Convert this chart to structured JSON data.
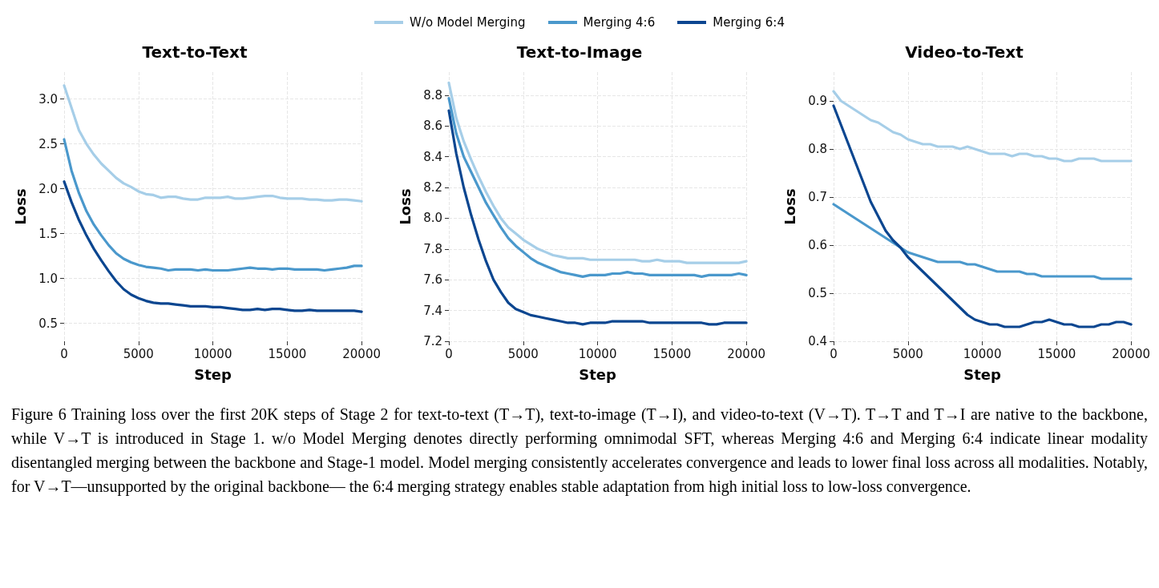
{
  "chart_data": [
    {
      "type": "line",
      "title": "Text-to-Text",
      "xlabel": "Step",
      "ylabel": "Loss",
      "legend": "top",
      "grid": true,
      "marker": "none",
      "line_style": "solid",
      "x": [
        0,
        500,
        1000,
        1500,
        2000,
        2500,
        3000,
        3500,
        4000,
        4500,
        5000,
        5500,
        6000,
        6500,
        7000,
        7500,
        8000,
        8500,
        9000,
        9500,
        10000,
        10500,
        11000,
        11500,
        12000,
        12500,
        13000,
        13500,
        14000,
        14500,
        15000,
        15500,
        16000,
        16500,
        17000,
        17500,
        18000,
        18500,
        19000,
        19500,
        20000
      ],
      "xlim": [
        0,
        20000
      ],
      "xticks": [
        0,
        5000,
        10000,
        15000,
        20000
      ],
      "ylim": [
        0.3,
        3.3
      ],
      "yticks": [
        0.5,
        {
          "value": 1,
          "label": "1.0"
        },
        1.5,
        {
          "value": 2,
          "label": "2.0"
        },
        2.5,
        {
          "value": 3,
          "label": "3.0"
        }
      ],
      "series": [
        {
          "name": "W/o Model Merging",
          "color": "#a6cee8",
          "values": [
            3.15,
            2.9,
            2.65,
            2.5,
            2.38,
            2.28,
            2.2,
            2.12,
            2.06,
            2.02,
            1.97,
            1.94,
            1.93,
            1.9,
            1.91,
            1.91,
            1.89,
            1.88,
            1.88,
            1.9,
            1.9,
            1.9,
            1.91,
            1.89,
            1.89,
            1.9,
            1.91,
            1.92,
            1.92,
            1.9,
            1.89,
            1.89,
            1.89,
            1.88,
            1.88,
            1.87,
            1.87,
            1.88,
            1.88,
            1.87,
            1.86
          ]
        },
        {
          "name": "Merging 4:6",
          "color": "#4a98cc",
          "values": [
            2.55,
            2.2,
            1.95,
            1.75,
            1.6,
            1.48,
            1.37,
            1.28,
            1.22,
            1.18,
            1.15,
            1.13,
            1.12,
            1.11,
            1.09,
            1.1,
            1.1,
            1.1,
            1.09,
            1.1,
            1.09,
            1.09,
            1.09,
            1.1,
            1.11,
            1.12,
            1.11,
            1.11,
            1.1,
            1.11,
            1.11,
            1.1,
            1.1,
            1.1,
            1.1,
            1.09,
            1.1,
            1.11,
            1.12,
            1.14,
            1.14
          ]
        },
        {
          "name": "Merging 6:4",
          "color": "#0b4690",
          "values": [
            2.08,
            1.85,
            1.65,
            1.48,
            1.33,
            1.2,
            1.08,
            0.97,
            0.88,
            0.82,
            0.78,
            0.75,
            0.73,
            0.72,
            0.72,
            0.71,
            0.7,
            0.69,
            0.69,
            0.69,
            0.68,
            0.68,
            0.67,
            0.66,
            0.65,
            0.65,
            0.66,
            0.65,
            0.66,
            0.66,
            0.65,
            0.64,
            0.64,
            0.65,
            0.64,
            0.64,
            0.64,
            0.64,
            0.64,
            0.64,
            0.63
          ]
        }
      ]
    },
    {
      "type": "line",
      "title": "Text-to-Image",
      "xlabel": "Step",
      "ylabel": "Loss",
      "grid": true,
      "marker": "none",
      "line_style": "solid",
      "x": [
        0,
        500,
        1000,
        1500,
        2000,
        2500,
        3000,
        3500,
        4000,
        4500,
        5000,
        5500,
        6000,
        6500,
        7000,
        7500,
        8000,
        8500,
        9000,
        9500,
        10000,
        10500,
        11000,
        11500,
        12000,
        12500,
        13000,
        13500,
        14000,
        14500,
        15000,
        15500,
        16000,
        16500,
        17000,
        17500,
        18000,
        18500,
        19000,
        19500,
        20000
      ],
      "xlim": [
        0,
        20000
      ],
      "xticks": [
        0,
        5000,
        10000,
        15000,
        20000
      ],
      "ylim": [
        7.2,
        8.95
      ],
      "yticks": [
        7.2,
        7.4,
        7.6,
        7.8,
        {
          "value": 8,
          "label": "8.0"
        },
        8.2,
        8.4,
        8.6,
        8.8
      ],
      "series": [
        {
          "color": "#a6cee8",
          "values": [
            8.88,
            8.65,
            8.5,
            8.38,
            8.27,
            8.17,
            8.08,
            8.0,
            7.94,
            7.9,
            7.86,
            7.83,
            7.8,
            7.78,
            7.76,
            7.75,
            7.74,
            7.74,
            7.74,
            7.73,
            7.73,
            7.73,
            7.73,
            7.73,
            7.73,
            7.73,
            7.72,
            7.72,
            7.73,
            7.72,
            7.72,
            7.72,
            7.71,
            7.71,
            7.71,
            7.71,
            7.71,
            7.71,
            7.71,
            7.71,
            7.72
          ]
        },
        {
          "color": "#4a98cc",
          "values": [
            8.78,
            8.55,
            8.4,
            8.3,
            8.2,
            8.1,
            8.02,
            7.94,
            7.87,
            7.82,
            7.78,
            7.74,
            7.71,
            7.69,
            7.67,
            7.65,
            7.64,
            7.63,
            7.62,
            7.63,
            7.63,
            7.63,
            7.64,
            7.64,
            7.65,
            7.64,
            7.64,
            7.63,
            7.63,
            7.63,
            7.63,
            7.63,
            7.63,
            7.63,
            7.62,
            7.63,
            7.63,
            7.63,
            7.63,
            7.64,
            7.63
          ]
        },
        {
          "color": "#0b4690",
          "values": [
            8.7,
            8.42,
            8.2,
            8.02,
            7.86,
            7.72,
            7.6,
            7.52,
            7.45,
            7.41,
            7.39,
            7.37,
            7.36,
            7.35,
            7.34,
            7.33,
            7.32,
            7.32,
            7.31,
            7.32,
            7.32,
            7.32,
            7.33,
            7.33,
            7.33,
            7.33,
            7.33,
            7.32,
            7.32,
            7.32,
            7.32,
            7.32,
            7.32,
            7.32,
            7.32,
            7.31,
            7.31,
            7.32,
            7.32,
            7.32,
            7.32
          ]
        }
      ]
    },
    {
      "type": "line",
      "title": "Video-to-Text",
      "xlabel": "Step",
      "ylabel": "Loss",
      "grid": true,
      "marker": "none",
      "line_style": "solid",
      "x": [
        0,
        500,
        1000,
        1500,
        2000,
        2500,
        3000,
        3500,
        4000,
        4500,
        5000,
        5500,
        6000,
        6500,
        7000,
        7500,
        8000,
        8500,
        9000,
        9500,
        10000,
        10500,
        11000,
        11500,
        12000,
        12500,
        13000,
        13500,
        14000,
        14500,
        15000,
        15500,
        16000,
        16500,
        17000,
        17500,
        18000,
        18500,
        19000,
        19500,
        20000
      ],
      "xlim": [
        0,
        20000
      ],
      "xticks": [
        0,
        5000,
        10000,
        15000,
        20000
      ],
      "ylim": [
        0.4,
        0.96
      ],
      "yticks": [
        0.4,
        0.5,
        0.6,
        0.7,
        0.8,
        0.9
      ],
      "series": [
        {
          "color": "#a6cee8",
          "values": [
            0.92,
            0.9,
            0.89,
            0.88,
            0.87,
            0.86,
            0.855,
            0.845,
            0.835,
            0.83,
            0.82,
            0.815,
            0.81,
            0.81,
            0.805,
            0.805,
            0.805,
            0.8,
            0.805,
            0.8,
            0.795,
            0.79,
            0.79,
            0.79,
            0.785,
            0.79,
            0.79,
            0.785,
            0.785,
            0.78,
            0.78,
            0.775,
            0.775,
            0.78,
            0.78,
            0.78,
            0.775,
            0.775,
            0.775,
            0.775,
            0.775
          ]
        },
        {
          "color": "#4a98cc",
          "values": [
            0.685,
            0.675,
            0.665,
            0.655,
            0.645,
            0.635,
            0.625,
            0.615,
            0.605,
            0.595,
            0.585,
            0.58,
            0.575,
            0.57,
            0.565,
            0.565,
            0.565,
            0.565,
            0.56,
            0.56,
            0.555,
            0.55,
            0.545,
            0.545,
            0.545,
            0.545,
            0.54,
            0.54,
            0.535,
            0.535,
            0.535,
            0.535,
            0.535,
            0.535,
            0.535,
            0.535,
            0.53,
            0.53,
            0.53,
            0.53,
            0.53
          ]
        },
        {
          "color": "#0b4690",
          "values": [
            0.89,
            0.85,
            0.81,
            0.77,
            0.73,
            0.69,
            0.66,
            0.63,
            0.61,
            0.595,
            0.575,
            0.56,
            0.545,
            0.53,
            0.515,
            0.5,
            0.485,
            0.47,
            0.455,
            0.445,
            0.44,
            0.435,
            0.435,
            0.43,
            0.43,
            0.43,
            0.435,
            0.44,
            0.44,
            0.445,
            0.44,
            0.435,
            0.435,
            0.43,
            0.43,
            0.43,
            0.435,
            0.435,
            0.44,
            0.44,
            0.435
          ]
        }
      ],
      "annotations": [
        "Figure 6 Training loss over the first 20K steps of Stage 2 for text-to-text (T→T), text-to-image (T→I), and video-to-text (V→T). T→T and T→I are native to the backbone, while V→T is introduced in Stage 1. w/o Model Merging denotes directly performing omnimodal SFT, whereas Merging 4:6 and Merging 6:4 indicate linear modality disentangled merging between the backbone and Stage-1 model. Model merging consistently accelerates convergence and leads to lower final loss across all modalities. Notably, for V→T—unsupported by the original backbone— the 6:4 merging strategy enables stable adaptation from high initial loss to low-loss convergence."
      ]
    }
  ]
}
